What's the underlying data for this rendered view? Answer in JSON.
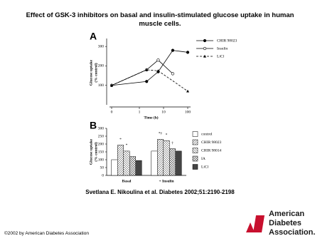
{
  "title": "Effect of GSK-3 inhibitors on basal and insulin-stimulated glucose uptake in human muscle cells.",
  "citation": "Svetlana E. Nikoulina et al. Diabetes 2002;51:2190-2198",
  "copyright": "©2002 by American Diabetes Association",
  "logo": [
    "American",
    "Diabetes",
    "Association."
  ],
  "chart_data": [
    {
      "type": "line",
      "panel_label": "A",
      "x_label": "Time (h)",
      "y_label": [
        "Glucose uptake",
        "(% control)"
      ],
      "x_scale": "log",
      "xlim": [
        0,
        100
      ],
      "xticks": [
        0,
        1,
        10,
        100
      ],
      "ylim": [
        0,
        330
      ],
      "yticks": [
        100,
        200,
        300
      ],
      "legend": "right",
      "series": [
        {
          "name": "CHIR 98023",
          "color": "#000000",
          "marker": "filled-circle",
          "dash": false,
          "x": [
            0,
            2,
            6,
            24,
            100
          ],
          "values": [
            100,
            120,
            170,
            280,
            270
          ]
        },
        {
          "name": "Insulin",
          "color": "#000000",
          "marker": "open-circle",
          "dash": false,
          "x": [
            0,
            2,
            6,
            24
          ],
          "values": [
            100,
            180,
            230,
            160
          ]
        },
        {
          "name": "LiCl",
          "color": "#000000",
          "marker": "filled-triangle",
          "dash": true,
          "x": [
            0,
            2,
            6,
            100
          ],
          "values": [
            100,
            180,
            175,
            70
          ]
        }
      ]
    },
    {
      "type": "bar",
      "panel_label": "B",
      "y_label": [
        "Glucose uptake",
        "(% control)"
      ],
      "categories": [
        "Basal",
        "+ Insulin"
      ],
      "ylim": [
        0,
        300
      ],
      "yticks": [
        0,
        50,
        100,
        150,
        200,
        250,
        300
      ],
      "legend": "right",
      "series": [
        {
          "name": "control",
          "color": "#ffffff",
          "pattern": "none",
          "values": [
            100,
            155
          ]
        },
        {
          "name": "CHIR 98023",
          "color": "#ffffff",
          "pattern": "diag",
          "values": [
            193,
            230
          ]
        },
        {
          "name": "CHIR 98014",
          "color": "#ffffff",
          "pattern": "diag2",
          "values": [
            155,
            222
          ]
        },
        {
          "name": "IA",
          "color": "#ffffff",
          "pattern": "grid",
          "values": [
            120,
            170
          ]
        },
        {
          "name": "LiCl",
          "color": "#444444",
          "pattern": "none",
          "values": [
            95,
            155
          ]
        }
      ],
      "annotations": [
        {
          "text": "*",
          "series": 1,
          "category": 0
        },
        {
          "text": "*",
          "series": 2,
          "category": 0
        },
        {
          "text": "*†",
          "series": 1,
          "category": 1
        },
        {
          "text": "*",
          "series": 2,
          "category": 1
        },
        {
          "text": "†",
          "series": 3,
          "category": 1
        }
      ]
    }
  ]
}
